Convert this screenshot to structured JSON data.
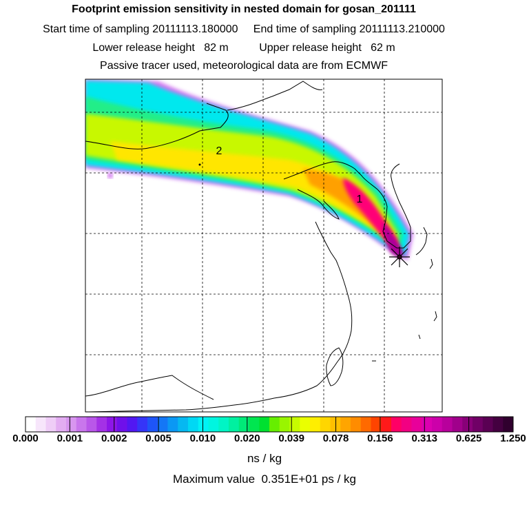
{
  "header": {
    "title": "Footprint emission sensitivity in nested domain for gosan_201111",
    "start_label": "Start time of sampling 20111113.180000",
    "end_label": "End time of sampling 20111113.210000",
    "lower_label": "Lower release height   82 m",
    "upper_label": "Upper release height   62 m",
    "tracer_note": "Passive tracer used, meteorological data are from ECMWF"
  },
  "map": {
    "markers": [
      {
        "id": "marker-1",
        "label": "1"
      },
      {
        "id": "marker-2",
        "label": "2"
      }
    ],
    "release_site_icon": "star-cross-icon",
    "plume_colors": [
      "#00ffff",
      "#00ff88",
      "#ccff00",
      "#ffee00",
      "#ffaa00",
      "#ff3300",
      "#ff0077",
      "#cc0099",
      "#660044"
    ]
  },
  "colorbar": {
    "labels": [
      "0.000",
      "0.001",
      "0.002",
      "0.005",
      "0.010",
      "0.020",
      "0.039",
      "0.078",
      "0.156",
      "0.313",
      "0.625",
      "1.250"
    ],
    "colors": [
      "#ffffff",
      "#f7e6fb",
      "#efcdf7",
      "#e3adf2",
      "#d896ef",
      "#c976ec",
      "#b957e9",
      "#a431e6",
      "#8d16e8",
      "#6f10ea",
      "#5218f2",
      "#3535f8",
      "#1e55f8",
      "#1477f6",
      "#0b98f4",
      "#06b8f1",
      "#00d8f4",
      "#00f2f5",
      "#00f5e0",
      "#00f5c5",
      "#00f0a0",
      "#00ea78",
      "#00e650",
      "#00e030",
      "#66ee00",
      "#99f500",
      "#c7fb00",
      "#eaff00",
      "#ffee00",
      "#ffd600",
      "#ffbf00",
      "#ffa500",
      "#ff8c00",
      "#ff6a00",
      "#ff4400",
      "#ff1a1a",
      "#ff0066",
      "#f20082",
      "#e8009a",
      "#dc00b0",
      "#cc00aa",
      "#b8009c",
      "#a0008b",
      "#880078",
      "#700066",
      "#5a0053",
      "#440040",
      "#30002e"
    ],
    "unit": "ns / kg",
    "max_value_text": "Maximum value  0.351E+01 ps / kg"
  }
}
